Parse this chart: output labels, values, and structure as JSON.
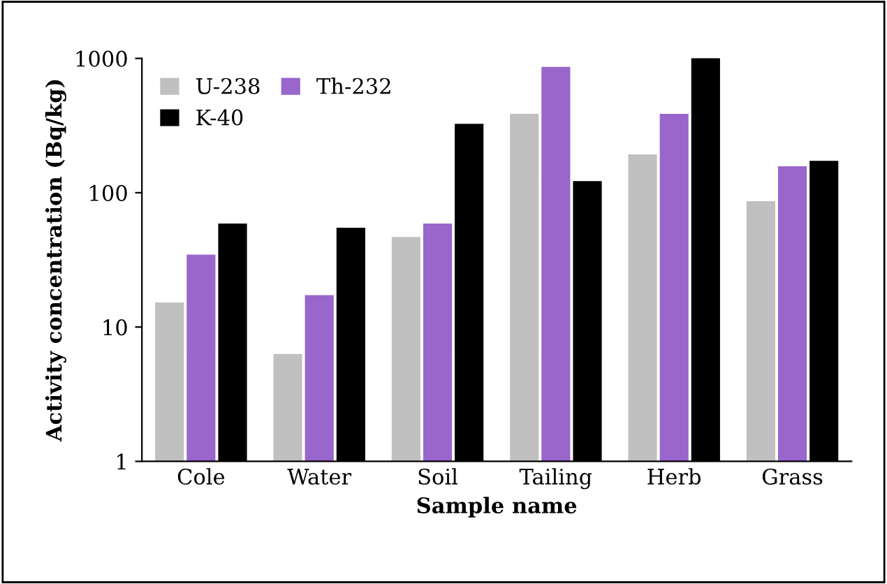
{
  "chart_data": {
    "type": "bar",
    "xlabel": "Sample name",
    "ylabel": "Activity concentration (Bq/kg)",
    "categories": [
      "Cole",
      "Water",
      "Soil",
      "Tailing",
      "Herb",
      "Grass"
    ],
    "series": [
      {
        "name": "U-238",
        "color": "#c0c0c0",
        "values": [
          15,
          6.2,
          46,
          380,
          190,
          85
        ]
      },
      {
        "name": "Th-232",
        "color": "#9966cc",
        "values": [
          34,
          17,
          58,
          850,
          380,
          155
        ]
      },
      {
        "name": "K-40",
        "color": "#000000",
        "values": [
          58,
          54,
          320,
          120,
          1000,
          170
        ]
      }
    ],
    "log": "y",
    "ylim": [
      1,
      1000
    ],
    "yticks": [
      1,
      10,
      100,
      1000
    ],
    "grid": false,
    "legend": "top left"
  }
}
